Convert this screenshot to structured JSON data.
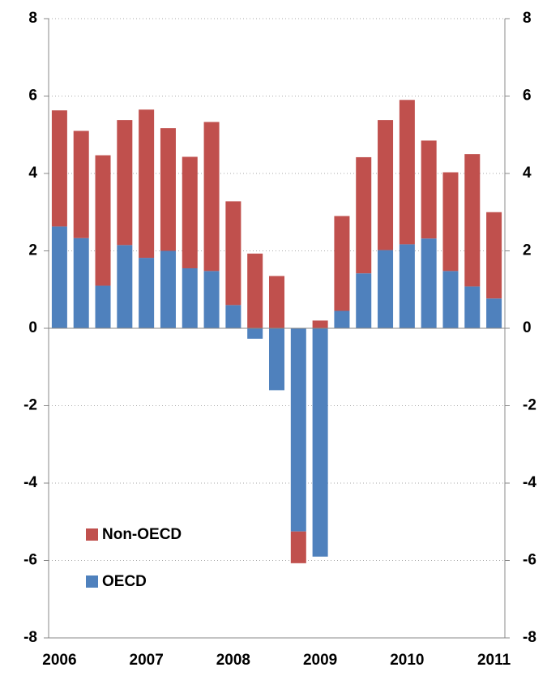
{
  "chart_data": {
    "type": "stacked_bar",
    "categories": [
      "2006",
      null,
      null,
      null,
      "2007",
      null,
      null,
      null,
      "2008",
      null,
      null,
      null,
      "2009",
      null,
      null,
      null,
      "2010",
      null,
      null,
      null,
      "2011"
    ],
    "series": [
      {
        "name": "OECD",
        "color": "#4f81bd",
        "values": [
          2.63,
          2.33,
          1.1,
          2.15,
          1.82,
          2.0,
          1.55,
          1.48,
          0.6,
          -0.27,
          -1.6,
          -5.25,
          -5.9,
          0.45,
          1.42,
          2.02,
          2.17,
          2.32,
          1.48,
          1.08,
          0.77
        ]
      },
      {
        "name": "Non-OECD",
        "color": "#c0504d",
        "values": [
          3.0,
          2.77,
          3.37,
          3.23,
          3.83,
          3.17,
          2.88,
          3.85,
          2.68,
          1.93,
          1.35,
          -0.82,
          0.2,
          2.45,
          3.0,
          3.36,
          3.73,
          2.53,
          2.55,
          3.42,
          2.23
        ]
      }
    ],
    "ylim": [
      -8,
      8
    ],
    "yticks": [
      -8,
      -6,
      -4,
      -2,
      0,
      2,
      4,
      6,
      8
    ],
    "y2lim": [
      -8,
      8
    ],
    "y2ticks": [
      -8,
      -6,
      -4,
      -2,
      0,
      2,
      4,
      6,
      8
    ],
    "grid": true,
    "legend": "lower left"
  }
}
